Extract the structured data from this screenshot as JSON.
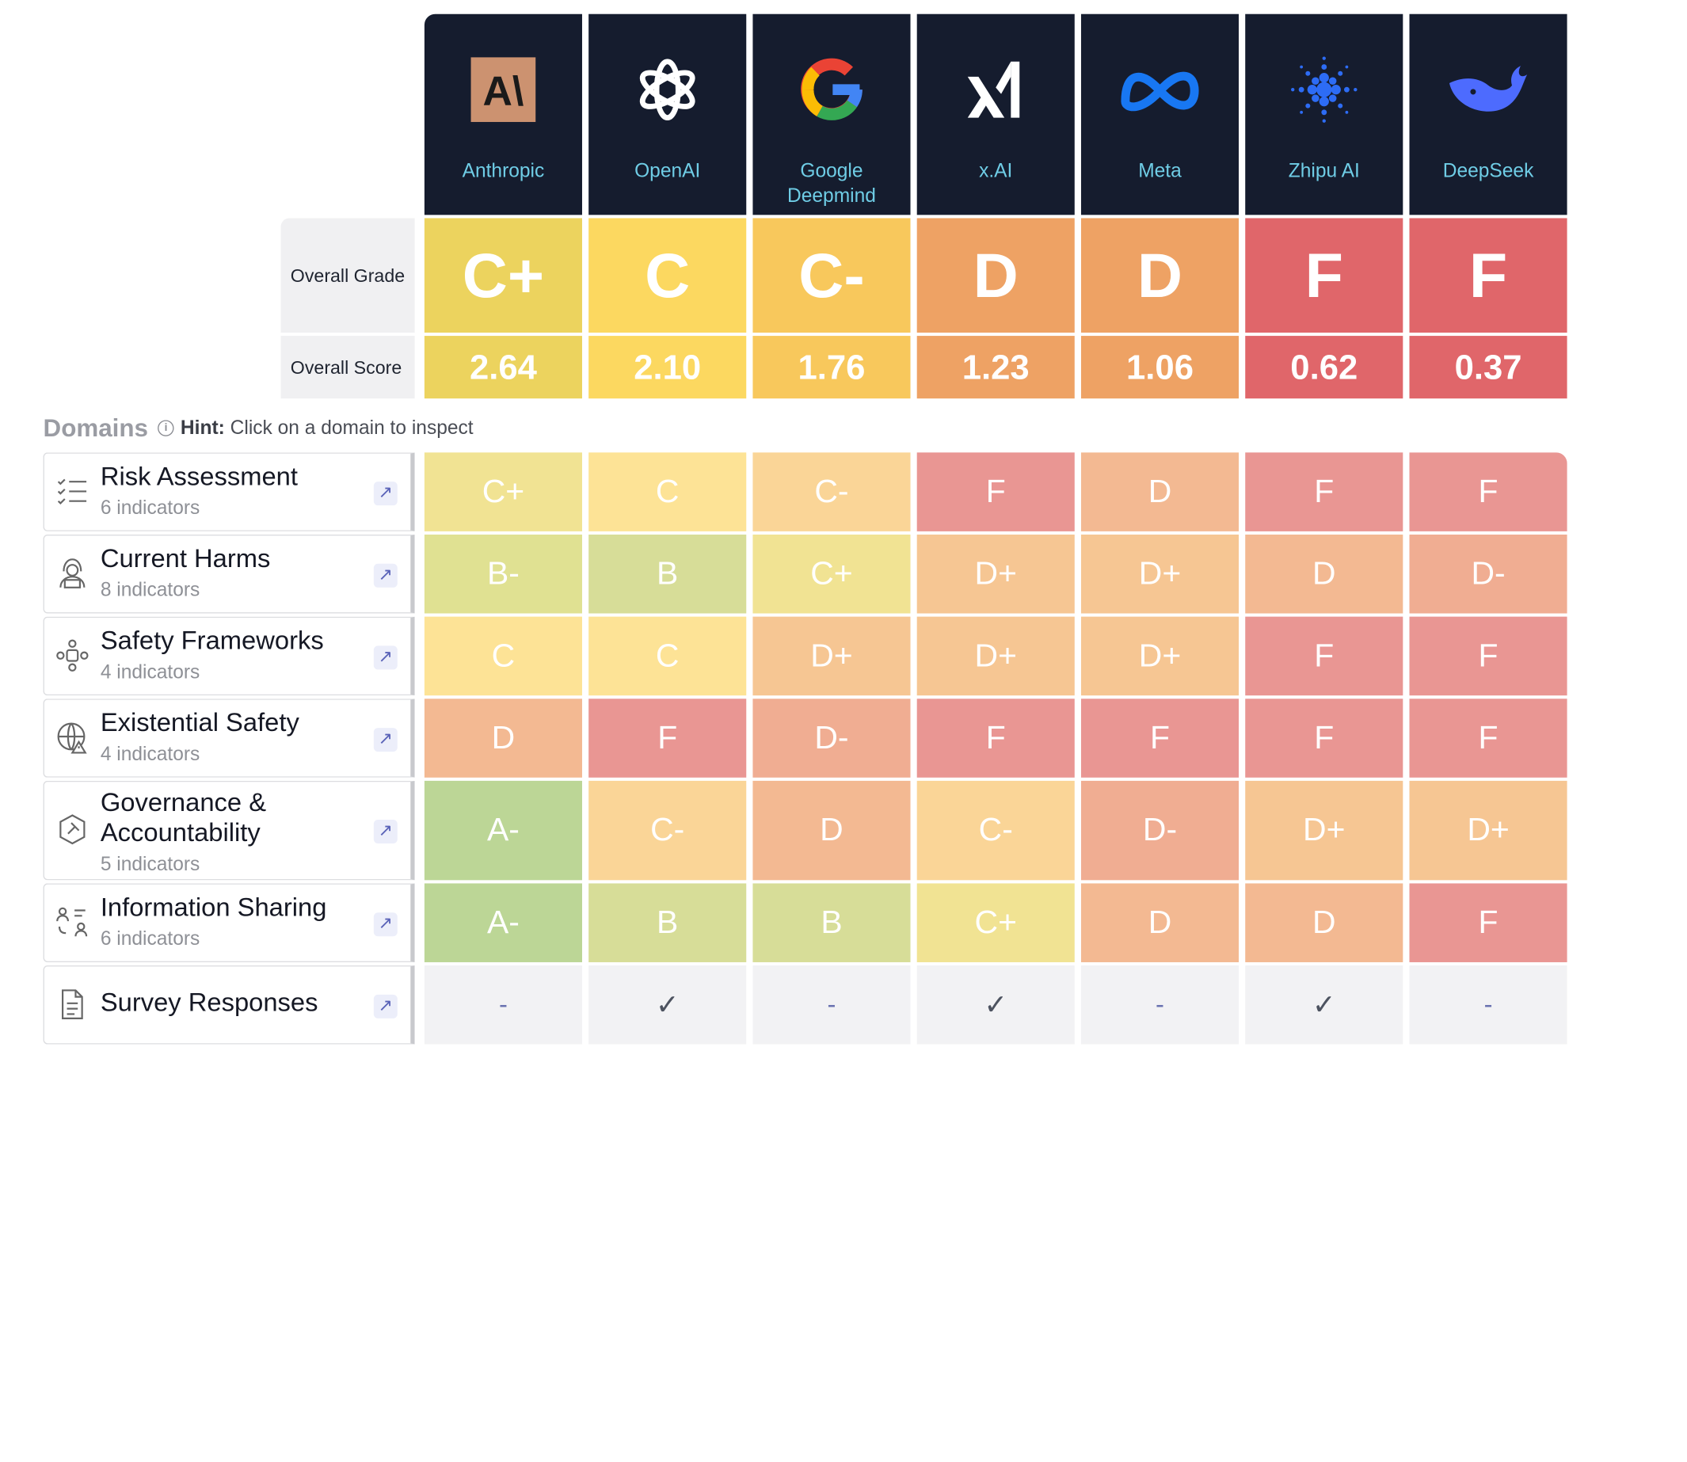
{
  "companies": [
    {
      "name": "Anthropic",
      "logo": "anthropic-logo"
    },
    {
      "name": "OpenAI",
      "logo": "openai-logo"
    },
    {
      "name": "Google\nDeepmind",
      "logo": "google-logo"
    },
    {
      "name": "x.AI",
      "logo": "xai-logo"
    },
    {
      "name": "Meta",
      "logo": "meta-logo"
    },
    {
      "name": "Zhipu AI",
      "logo": "zhipu-logo"
    },
    {
      "name": "DeepSeek",
      "logo": "deepseek-logo"
    }
  ],
  "overall": {
    "grade_label": "Overall Grade",
    "score_label": "Overall Score",
    "grades": [
      "C+",
      "C",
      "C-",
      "D",
      "D",
      "F",
      "F"
    ],
    "scores": [
      "2.64",
      "2.10",
      "1.76",
      "1.23",
      "1.06",
      "0.62",
      "0.37"
    ],
    "grade_colors": [
      "#ecd35e",
      "#fcd860",
      "#f8c85c",
      "#eea264",
      "#eea264",
      "#e0666a",
      "#e0666a"
    ],
    "score_colors": [
      "#ecd35e",
      "#fcd860",
      "#f8c85c",
      "#eea264",
      "#eea264",
      "#e0666a",
      "#e0666a"
    ]
  },
  "domains_header": {
    "title": "Domains",
    "hint_prefix": "Hint:",
    "hint_text": "Click on a domain to inspect"
  },
  "domains": [
    {
      "title": "Risk Assessment",
      "sub": "6 indicators",
      "icon": "checklist-icon",
      "grades": [
        "C+",
        "C",
        "C-",
        "F",
        "D",
        "F",
        "F"
      ]
    },
    {
      "title": "Current Harms",
      "sub": "8 indicators",
      "icon": "hacker-icon",
      "grades": [
        "B-",
        "B",
        "C+",
        "D+",
        "D+",
        "D",
        "D-"
      ]
    },
    {
      "title": "Safety Frameworks",
      "sub": "4 indicators",
      "icon": "framework-icon",
      "grades": [
        "C",
        "C",
        "D+",
        "D+",
        "D+",
        "F",
        "F"
      ]
    },
    {
      "title": "Existential Safety",
      "sub": "4 indicators",
      "icon": "globe-warning-icon",
      "grades": [
        "D",
        "F",
        "D-",
        "F",
        "F",
        "F",
        "F"
      ]
    },
    {
      "title": "Governance & Accountability",
      "sub": "5 indicators",
      "icon": "gavel-icon",
      "grades": [
        "A-",
        "C-",
        "D",
        "C-",
        "D-",
        "D+",
        "D+"
      ]
    },
    {
      "title": "Information Sharing",
      "sub": "6 indicators",
      "icon": "people-share-icon",
      "grades": [
        "A-",
        "B",
        "B",
        "C+",
        "D",
        "D",
        "F"
      ]
    },
    {
      "title": "Survey Responses",
      "sub": "",
      "icon": "document-icon",
      "grades": [
        "-",
        "✓",
        "-",
        "✓",
        "-",
        "✓",
        "-"
      ]
    }
  ],
  "grade_palette": {
    "A-": "#bcd696",
    "B": "#d7dd98",
    "B-": "#e0e192",
    "C+": "#f1e393",
    "C": "#fde396",
    "C-": "#fad597",
    "D+": "#f6c693",
    "D": "#f3b992",
    "D-": "#f0ad92",
    "F": "#e99693"
  }
}
